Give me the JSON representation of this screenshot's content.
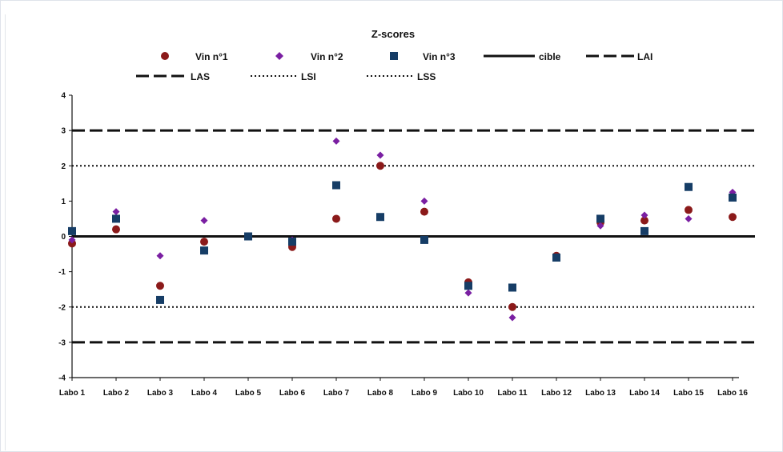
{
  "chart_data": {
    "type": "scatter",
    "title": "Z-scores",
    "xlabel": "",
    "ylabel": "",
    "ylim": [
      -4,
      4
    ],
    "yticks": [
      "4",
      "3",
      "2",
      "1",
      "0",
      "-1",
      "-2",
      "-3",
      "-4"
    ],
    "grid": false,
    "legend_position": "top",
    "categories": [
      "Labo 1",
      "Labo 2",
      "Labo 3",
      "Labo 4",
      "Labo 5",
      "Labo 6",
      "Labo 7",
      "Labo 8",
      "Labo 9",
      "Labo 10",
      "Labo 11",
      "Labo 12",
      "Labo 13",
      "Labo 14",
      "Labo 15",
      "Labo 16"
    ],
    "series": [
      {
        "name": "Vin n°1",
        "marker": "circle",
        "color": "#8b1a1a",
        "values": [
          -0.2,
          0.2,
          -1.4,
          -0.15,
          0.0,
          -0.3,
          0.5,
          2.0,
          0.7,
          -1.3,
          -2.0,
          -0.55,
          0.4,
          0.45,
          0.75,
          0.55
        ]
      },
      {
        "name": "Vin n°2",
        "marker": "diamond",
        "color": "#7a1fa2",
        "values": [
          -0.1,
          0.7,
          -0.55,
          0.45,
          0.0,
          -0.1,
          2.7,
          2.3,
          1.0,
          -1.6,
          -2.3,
          -0.6,
          0.3,
          0.6,
          0.5,
          1.25
        ]
      },
      {
        "name": "Vin n°3",
        "marker": "square",
        "color": "#163d66",
        "values": [
          0.15,
          0.5,
          -1.8,
          -0.4,
          0.0,
          -0.15,
          1.45,
          0.55,
          -0.1,
          -1.4,
          -1.45,
          -0.6,
          0.5,
          0.15,
          1.4,
          1.1
        ]
      }
    ],
    "reference_lines": [
      {
        "name": "cible",
        "value": 0,
        "style": "solid"
      },
      {
        "name": "LAI",
        "value": -3,
        "style": "long-dash"
      },
      {
        "name": "LAS",
        "value": 3,
        "style": "long-dash"
      },
      {
        "name": "LSI",
        "value": -2,
        "style": "dotted"
      },
      {
        "name": "LSS",
        "value": 2,
        "style": "dotted"
      }
    ]
  }
}
